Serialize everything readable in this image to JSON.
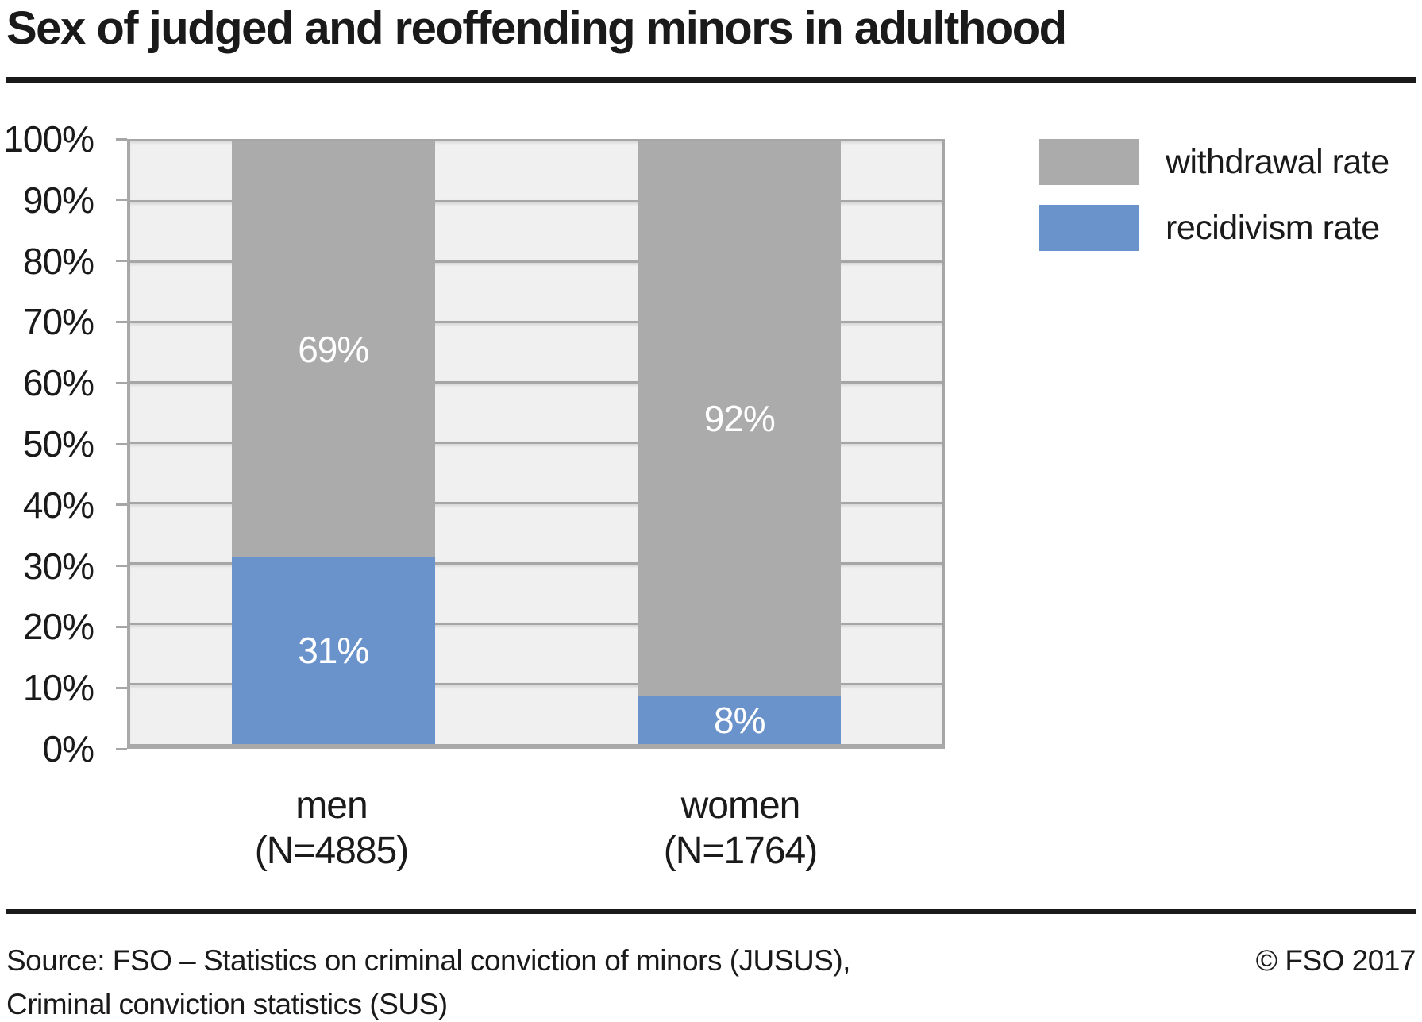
{
  "chart_data": {
    "type": "bar",
    "stacked": true,
    "title": "Sex of judged and reoffending minors in adulthood",
    "categories": [
      "men (N=4885)",
      "women (N=1764)"
    ],
    "category_labels": [
      {
        "line1": "men",
        "line2": "(N=4885)"
      },
      {
        "line1": "women",
        "line2": "(N=1764)"
      }
    ],
    "series": [
      {
        "name": "recidivism rate",
        "color": "#6b93cb",
        "values": [
          31,
          8
        ],
        "labels": [
          "31%",
          "8%"
        ]
      },
      {
        "name": "withdrawal rate",
        "color": "#ababab",
        "values": [
          69,
          92
        ],
        "labels": [
          "69%",
          "92%"
        ]
      }
    ],
    "xlabel": "",
    "ylabel": "",
    "ylim": [
      0,
      100
    ],
    "ytick_step": 10,
    "ytick_labels": [
      "0%",
      "10%",
      "20%",
      "30%",
      "40%",
      "50%",
      "60%",
      "70%",
      "80%",
      "90%",
      "100%"
    ],
    "grid": true,
    "bar_width_pct": 25,
    "legend_position": "top-right",
    "plot_bg": "#f0f0f0",
    "grid_color": "#a6a6a6"
  },
  "legend": {
    "items": [
      {
        "label": "withdrawal rate",
        "color": "#ababab"
      },
      {
        "label": "recidivism rate",
        "color": "#6b93cb"
      }
    ]
  },
  "footer": {
    "source_line1": "Source: FSO – Statistics on criminal conviction of minors (JUSUS),",
    "source_line2": "Criminal conviction statistics (SUS)",
    "copyright": "© FSO 2017"
  },
  "colors": {
    "text": "#1a1a1a",
    "bar_gray": "#ababab",
    "bar_blue": "#6b93cb",
    "plot_bg": "#f0f0f0",
    "gridline": "#a6a6a6",
    "axis": "#a9a9a9",
    "value_label": "#ffffff"
  }
}
